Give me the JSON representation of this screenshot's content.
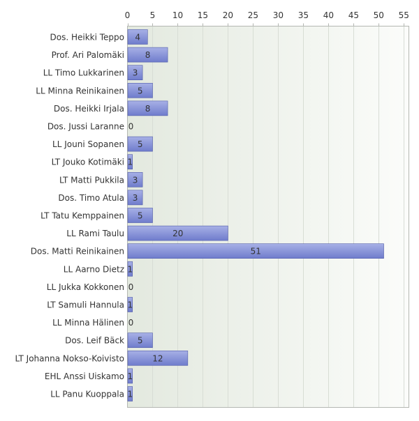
{
  "chart_data": {
    "type": "bar",
    "orientation": "horizontal",
    "categories": [
      "Dos. Heikki Teppo",
      "Prof. Ari Palomäki",
      "LL Timo Lukkarinen",
      "LL Minna Reinikainen",
      "Dos. Heikki Irjala",
      "Dos. Jussi Laranne",
      "LL Jouni Sopanen",
      "LT Jouko Kotimäki",
      "LT Matti Pukkila",
      "Dos. Timo Atula",
      "LT Tatu Kemppainen",
      "LL Rami Taulu",
      "Dos. Matti Reinikainen",
      "LL Aarno Dietz",
      "LL Jukka Kokkonen",
      "LT Samuli Hannula",
      "LL Minna Hälinen",
      "Dos. Leif Bäck",
      "LT Johanna Nokso-Koivisto",
      "EHL Anssi Uiskamo",
      "LL Panu Kuoppala"
    ],
    "values": [
      4,
      8,
      3,
      5,
      8,
      0,
      5,
      1,
      3,
      3,
      5,
      20,
      51,
      1,
      0,
      1,
      0,
      5,
      12,
      1,
      1
    ],
    "xlim": [
      0,
      56
    ],
    "xticks": [
      0,
      5,
      10,
      15,
      20,
      25,
      30,
      35,
      40,
      45,
      50,
      55
    ],
    "tick_labels": [
      "0",
      "5",
      "10",
      "15",
      "20",
      "25",
      "30",
      "35",
      "40",
      "45",
      "50",
      "55"
    ],
    "data_labels": true,
    "grid": "vertical",
    "xaxis_position": "top",
    "colors": {
      "bar_fill_light": "#a7b0e6",
      "bar_fill_dark": "#6f7ccc",
      "bar_stroke": "#4f5aa8",
      "plot_bg_left": "#e3e9df",
      "plot_bg_right": "#fbfcfa",
      "grid": "#d8ddd5",
      "axis": "#b4b7b2",
      "text": "#333333"
    }
  }
}
